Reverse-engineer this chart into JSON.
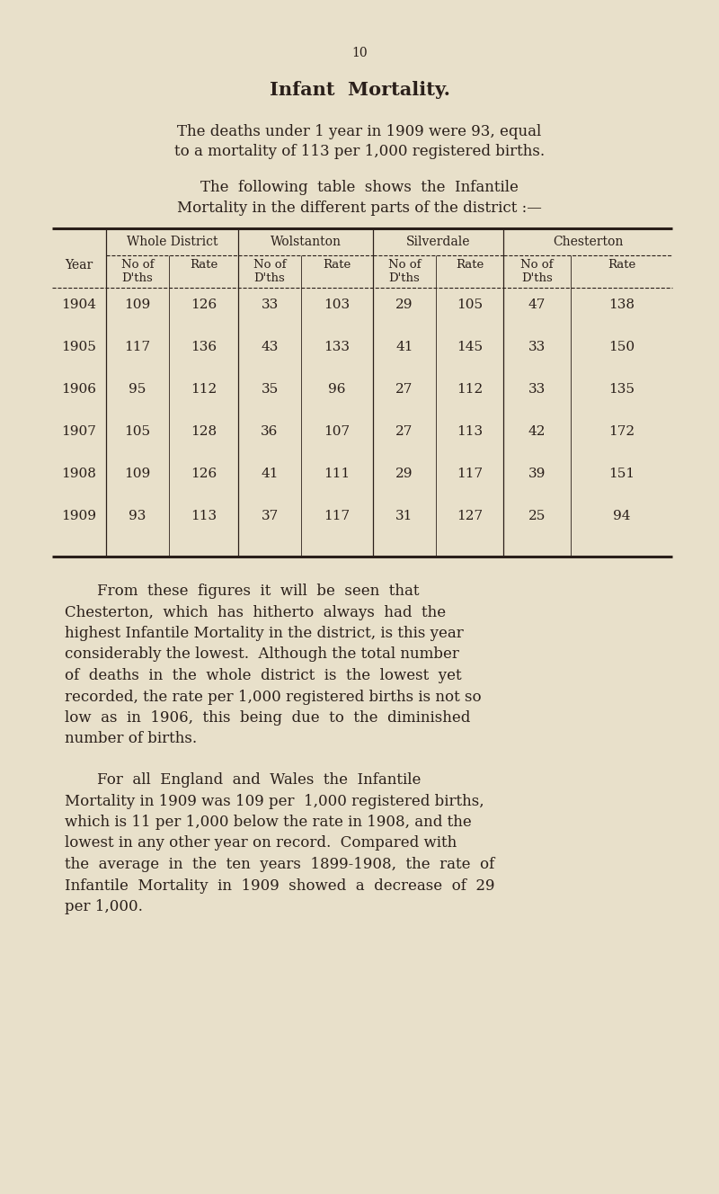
{
  "page_number": "10",
  "title": "Infant  Mortality.",
  "bg_color": "#e8e0ca",
  "text_color": "#2a1f1a",
  "intro_line1": "The deaths under 1 year in 1909 were 93, equal",
  "intro_line2": "to a mortality of 113 per 1,000 registered births.",
  "table_intro_line1": "The  following  table  shows  the  Infantile",
  "table_intro_line2": "Mortality in the different parts of the district :—",
  "col_headers": [
    "Whole District",
    "Wolstanton",
    "Silverdale",
    "Chesterton"
  ],
  "table_data": [
    [
      "1904",
      "109",
      "126",
      "33",
      "103",
      "29",
      "105",
      "47",
      "138"
    ],
    [
      "1905",
      "117",
      "136",
      "43",
      "133",
      "41",
      "145",
      "33",
      "150"
    ],
    [
      "1906",
      "95",
      "112",
      "35",
      "96",
      "27",
      "112",
      "33",
      "135"
    ],
    [
      "1907",
      "105",
      "128",
      "36",
      "107",
      "27",
      "113",
      "42",
      "172"
    ],
    [
      "1908",
      "109",
      "126",
      "41",
      "111",
      "29",
      "117",
      "39",
      "151"
    ],
    [
      "1909",
      "93",
      "113",
      "37",
      "117",
      "31",
      "127",
      "25",
      "94"
    ]
  ],
  "para1_lines": [
    "From  these  figures  it  will  be  seen  that",
    "Chesterton,  which  has  hitherto  always  had  the",
    "highest Infantile Mortality in the district, is this year",
    "considerably the lowest.  Although the total number",
    "of  deaths  in  the  whole  district  is  the  lowest  yet",
    "recorded, the rate per 1,000 registered births is not so",
    "low  as  in  1906,  this  being  due  to  the  diminished",
    "number of births."
  ],
  "para2_lines": [
    "For  all  England  and  Wales  the  Infantile",
    "Mortality in 1909 was 109 per  1,000 registered births,",
    "which is 11 per 1,000 below the rate in 1908, and the",
    "lowest in any other year on record.  Compared with",
    "the  average  in  the  ten  years  1899-1908,  the  rate  of",
    "Infantile  Mortality  in  1909  showed  a  decrease  of  29",
    "per 1,000."
  ]
}
